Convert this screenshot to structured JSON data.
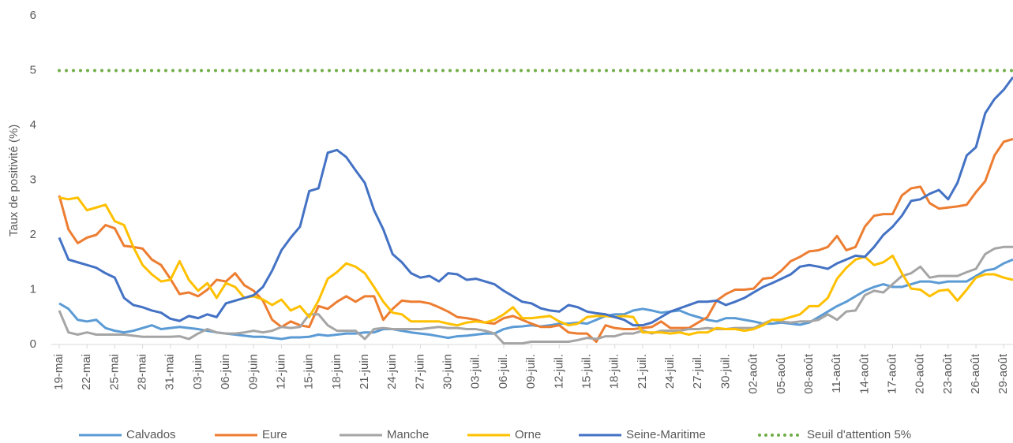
{
  "chart_data": {
    "type": "line",
    "ylabel": "Taux de positivité (%)",
    "ylim": [
      0,
      6
    ],
    "yticks": [
      0,
      1,
      2,
      3,
      4,
      5,
      6
    ],
    "grid": false,
    "legend": "bottom",
    "categories": [
      "19-mai",
      null,
      null,
      "22-mai",
      null,
      null,
      "25-mai",
      null,
      null,
      "28-mai",
      null,
      null,
      "31-mai",
      null,
      null,
      "03-juin",
      null,
      null,
      "06-juin",
      null,
      null,
      "09-juin",
      null,
      null,
      "12-juin",
      null,
      null,
      "15-juin",
      null,
      null,
      "18-juin",
      null,
      null,
      "21-juin",
      null,
      null,
      "24-juin",
      null,
      null,
      "27-juin",
      null,
      null,
      "30-juin",
      null,
      null,
      "03-juil.",
      null,
      null,
      "06-juil.",
      null,
      null,
      "09-juil.",
      null,
      null,
      "12-juil.",
      null,
      null,
      "15-juil.",
      null,
      null,
      "18-juil.",
      null,
      null,
      "21-juil.",
      null,
      null,
      "24-juil.",
      null,
      null,
      "27-juil.",
      null,
      null,
      "30-juil.",
      null,
      null,
      "02-août",
      null,
      null,
      "05-août",
      null,
      null,
      "08-août",
      null,
      null,
      "11-août",
      null,
      null,
      "14-août",
      null,
      null,
      "17-août",
      null,
      null,
      "20-août",
      null,
      null,
      "23-août",
      null,
      null,
      "26-août",
      null,
      null,
      "29-août",
      null
    ],
    "series": [
      {
        "name": "Calvados",
        "color": "#5B9BD5",
        "values": [
          0.75,
          0.65,
          0.45,
          0.42,
          0.45,
          0.3,
          0.25,
          0.22,
          0.25,
          0.3,
          0.35,
          0.28,
          0.3,
          0.32,
          0.3,
          0.28,
          0.25,
          0.22,
          0.2,
          0.18,
          0.16,
          0.14,
          0.14,
          0.12,
          0.1,
          0.13,
          0.13,
          0.14,
          0.18,
          0.16,
          0.18,
          0.2,
          0.2,
          0.22,
          0.22,
          0.28,
          0.28,
          0.25,
          0.22,
          0.2,
          0.18,
          0.15,
          0.12,
          0.15,
          0.16,
          0.18,
          0.2,
          0.2,
          0.28,
          0.32,
          0.33,
          0.35,
          0.33,
          0.35,
          0.38,
          0.38,
          0.4,
          0.38,
          0.45,
          0.52,
          0.55,
          0.55,
          0.62,
          0.65,
          0.62,
          0.58,
          0.6,
          0.62,
          0.55,
          0.5,
          0.45,
          0.42,
          0.48,
          0.48,
          0.45,
          0.42,
          0.38,
          0.38,
          0.4,
          0.38,
          0.36,
          0.4,
          0.5,
          0.6,
          0.7,
          0.78,
          0.88,
          0.98,
          1.05,
          1.1,
          1.05,
          1.05,
          1.1,
          1.15,
          1.15,
          1.12,
          1.15,
          1.15,
          1.15,
          1.25,
          1.35,
          1.38,
          1.48,
          1.55
        ]
      },
      {
        "name": "Eure",
        "color": "#ED7D31",
        "values": [
          2.72,
          2.1,
          1.85,
          1.95,
          2.0,
          2.18,
          2.12,
          1.8,
          1.78,
          1.75,
          1.55,
          1.45,
          1.2,
          0.92,
          0.95,
          0.88,
          1.0,
          1.18,
          1.15,
          1.3,
          1.08,
          0.98,
          0.8,
          0.45,
          0.32,
          0.42,
          0.35,
          0.32,
          0.7,
          0.65,
          0.78,
          0.88,
          0.78,
          0.88,
          0.88,
          0.45,
          0.65,
          0.8,
          0.78,
          0.78,
          0.75,
          0.68,
          0.6,
          0.5,
          0.48,
          0.45,
          0.4,
          0.38,
          0.48,
          0.52,
          0.45,
          0.38,
          0.32,
          0.32,
          0.35,
          0.22,
          0.2,
          0.2,
          0.05,
          0.35,
          0.3,
          0.28,
          0.28,
          0.3,
          0.32,
          0.42,
          0.3,
          0.3,
          0.3,
          0.4,
          0.5,
          0.8,
          0.92,
          1.0,
          1.0,
          1.02,
          1.2,
          1.22,
          1.35,
          1.52,
          1.6,
          1.7,
          1.72,
          1.78,
          1.98,
          1.72,
          1.78,
          2.15,
          2.35,
          2.38,
          2.38,
          2.72,
          2.85,
          2.88,
          2.58,
          2.48,
          2.5,
          2.52,
          2.55,
          2.78,
          2.98,
          3.45,
          3.7,
          3.75
        ]
      },
      {
        "name": "Manche",
        "color": "#A5A5A5",
        "values": [
          0.62,
          0.22,
          0.18,
          0.22,
          0.18,
          0.18,
          0.18,
          0.18,
          0.16,
          0.14,
          0.14,
          0.14,
          0.14,
          0.15,
          0.1,
          0.2,
          0.28,
          0.22,
          0.2,
          0.2,
          0.22,
          0.25,
          0.22,
          0.25,
          0.32,
          0.3,
          0.32,
          0.55,
          0.55,
          0.35,
          0.25,
          0.25,
          0.25,
          0.1,
          0.28,
          0.3,
          0.28,
          0.28,
          0.28,
          0.28,
          0.3,
          0.32,
          0.3,
          0.3,
          0.28,
          0.28,
          0.25,
          0.2,
          0.02,
          0.02,
          0.02,
          0.05,
          0.05,
          0.05,
          0.05,
          0.05,
          0.08,
          0.12,
          0.1,
          0.15,
          0.15,
          0.2,
          0.2,
          0.25,
          0.2,
          0.25,
          0.25,
          0.25,
          0.28,
          0.28,
          0.3,
          0.28,
          0.28,
          0.3,
          0.3,
          0.3,
          0.38,
          0.45,
          0.42,
          0.4,
          0.42,
          0.42,
          0.45,
          0.55,
          0.45,
          0.6,
          0.62,
          0.9,
          0.98,
          0.95,
          1.1,
          1.25,
          1.3,
          1.42,
          1.22,
          1.25,
          1.25,
          1.25,
          1.32,
          1.38,
          1.65,
          1.75,
          1.78,
          1.78
        ]
      },
      {
        "name": "Orne",
        "color": "#FFC000",
        "values": [
          2.68,
          2.65,
          2.68,
          2.45,
          2.5,
          2.55,
          2.25,
          2.18,
          1.78,
          1.45,
          1.28,
          1.15,
          1.18,
          1.52,
          1.18,
          0.98,
          1.12,
          0.85,
          1.12,
          1.05,
          0.85,
          0.88,
          0.82,
          0.72,
          0.82,
          0.62,
          0.7,
          0.5,
          0.8,
          1.2,
          1.32,
          1.48,
          1.42,
          1.3,
          1.05,
          0.78,
          0.58,
          0.55,
          0.42,
          0.42,
          0.42,
          0.42,
          0.38,
          0.35,
          0.4,
          0.42,
          0.4,
          0.45,
          0.55,
          0.68,
          0.48,
          0.48,
          0.5,
          0.52,
          0.42,
          0.35,
          0.38,
          0.5,
          0.52,
          0.52,
          0.5,
          0.52,
          0.5,
          0.22,
          0.22,
          0.22,
          0.2,
          0.22,
          0.18,
          0.22,
          0.22,
          0.3,
          0.28,
          0.28,
          0.25,
          0.28,
          0.35,
          0.45,
          0.45,
          0.5,
          0.55,
          0.7,
          0.7,
          0.85,
          1.2,
          1.4,
          1.55,
          1.6,
          1.45,
          1.5,
          1.62,
          1.3,
          1.02,
          1.0,
          0.88,
          0.98,
          1.0,
          0.8,
          1.0,
          1.22,
          1.28,
          1.28,
          1.22,
          1.18
        ]
      },
      {
        "name": "Seine-Maritime",
        "color": "#4472C4",
        "values": [
          1.95,
          1.55,
          1.5,
          1.45,
          1.4,
          1.3,
          1.22,
          0.85,
          0.72,
          0.68,
          0.62,
          0.58,
          0.47,
          0.43,
          0.52,
          0.48,
          0.55,
          0.5,
          0.75,
          0.8,
          0.85,
          0.9,
          1.05,
          1.35,
          1.72,
          1.95,
          2.15,
          2.8,
          2.85,
          3.5,
          3.55,
          3.42,
          3.18,
          2.95,
          2.45,
          2.1,
          1.65,
          1.5,
          1.3,
          1.22,
          1.25,
          1.15,
          1.3,
          1.28,
          1.18,
          1.2,
          1.15,
          1.1,
          0.98,
          0.88,
          0.78,
          0.75,
          0.66,
          0.62,
          0.6,
          0.72,
          0.68,
          0.6,
          0.57,
          0.55,
          0.5,
          0.45,
          0.35,
          0.35,
          0.4,
          0.5,
          0.6,
          0.66,
          0.72,
          0.78,
          0.78,
          0.8,
          0.72,
          0.78,
          0.85,
          0.95,
          1.05,
          1.12,
          1.2,
          1.28,
          1.42,
          1.45,
          1.42,
          1.38,
          1.48,
          1.55,
          1.62,
          1.6,
          1.78,
          2.0,
          2.15,
          2.35,
          2.62,
          2.65,
          2.75,
          2.82,
          2.65,
          2.95,
          3.45,
          3.6,
          4.22,
          4.48,
          4.65,
          4.88
        ]
      }
    ],
    "threshold": {
      "name": "Seuil d'attention 5%",
      "value": 5,
      "color": "#70AD47"
    }
  }
}
